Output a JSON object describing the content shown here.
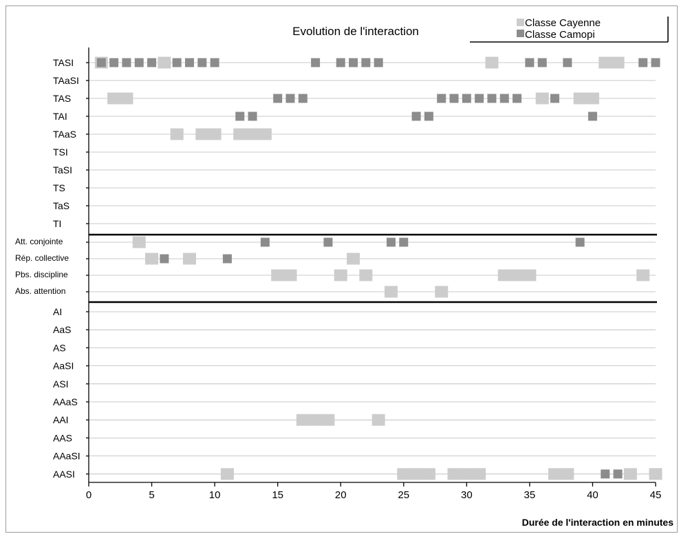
{
  "chart_data": {
    "type": "scatter",
    "title": "Evolution de l'interaction",
    "xlabel": "Durée de l'interaction en minutes",
    "ylabel": "",
    "xlim": [
      0,
      45
    ],
    "x_ticks": [
      0,
      5,
      10,
      15,
      20,
      25,
      30,
      35,
      40,
      45
    ],
    "grid": true,
    "legend_position": "top-right",
    "groups": [
      [
        "TASI",
        "TAaSI",
        "TAS",
        "TAI",
        "TAaS",
        "TSI",
        "TaSI",
        "TS",
        "TaS",
        "TI"
      ],
      [
        "Att. conjointe",
        "Rép. collective",
        "Pbs. discipline",
        "Abs. attention"
      ],
      [
        "AI",
        "AaS",
        "AS",
        "AaSI",
        "ASI",
        "AAaS",
        "AAI",
        "AAS",
        "AAaSI",
        "AASI"
      ]
    ],
    "series": [
      {
        "name": "Classe Cayenne",
        "color": "#cccccc",
        "points": [
          {
            "x": 1,
            "category": "TASI"
          },
          {
            "x": 6,
            "category": "TASI"
          },
          {
            "x": 32,
            "category": "TASI"
          },
          {
            "x": 41,
            "category": "TASI"
          },
          {
            "x": 42,
            "category": "TASI"
          },
          {
            "x": 2,
            "category": "TAS"
          },
          {
            "x": 3,
            "category": "TAS"
          },
          {
            "x": 36,
            "category": "TAS"
          },
          {
            "x": 39,
            "category": "TAS"
          },
          {
            "x": 40,
            "category": "TAS"
          },
          {
            "x": 7,
            "category": "TAaS"
          },
          {
            "x": 9,
            "category": "TAaS"
          },
          {
            "x": 10,
            "category": "TAaS"
          },
          {
            "x": 12,
            "category": "TAaS"
          },
          {
            "x": 13,
            "category": "TAaS"
          },
          {
            "x": 14,
            "category": "TAaS"
          },
          {
            "x": 4,
            "category": "Att. conjointe"
          },
          {
            "x": 5,
            "category": "Rép. collective"
          },
          {
            "x": 8,
            "category": "Rép. collective"
          },
          {
            "x": 21,
            "category": "Rép. collective"
          },
          {
            "x": 15,
            "category": "Pbs. discipline"
          },
          {
            "x": 16,
            "category": "Pbs. discipline"
          },
          {
            "x": 20,
            "category": "Pbs. discipline"
          },
          {
            "x": 22,
            "category": "Pbs. discipline"
          },
          {
            "x": 33,
            "category": "Pbs. discipline"
          },
          {
            "x": 34,
            "category": "Pbs. discipline"
          },
          {
            "x": 35,
            "category": "Pbs. discipline"
          },
          {
            "x": 44,
            "category": "Pbs. discipline"
          },
          {
            "x": 24,
            "category": "Abs. attention"
          },
          {
            "x": 28,
            "category": "Abs. attention"
          },
          {
            "x": 17,
            "category": "AAI"
          },
          {
            "x": 18,
            "category": "AAI"
          },
          {
            "x": 19,
            "category": "AAI"
          },
          {
            "x": 23,
            "category": "AAI"
          },
          {
            "x": 11,
            "category": "AASI"
          },
          {
            "x": 25,
            "category": "AASI"
          },
          {
            "x": 26,
            "category": "AASI"
          },
          {
            "x": 27,
            "category": "AASI"
          },
          {
            "x": 29,
            "category": "AASI"
          },
          {
            "x": 30,
            "category": "AASI"
          },
          {
            "x": 31,
            "category": "AASI"
          },
          {
            "x": 37,
            "category": "AASI"
          },
          {
            "x": 38,
            "category": "AASI"
          },
          {
            "x": 43,
            "category": "AASI"
          },
          {
            "x": 45,
            "category": "AASI"
          }
        ]
      },
      {
        "name": "Classe Camopi",
        "color": "#8c8c8c",
        "points": [
          {
            "x": 1,
            "category": "TASI"
          },
          {
            "x": 2,
            "category": "TASI"
          },
          {
            "x": 3,
            "category": "TASI"
          },
          {
            "x": 4,
            "category": "TASI"
          },
          {
            "x": 5,
            "category": "TASI"
          },
          {
            "x": 7,
            "category": "TASI"
          },
          {
            "x": 8,
            "category": "TASI"
          },
          {
            "x": 9,
            "category": "TASI"
          },
          {
            "x": 10,
            "category": "TASI"
          },
          {
            "x": 18,
            "category": "TASI"
          },
          {
            "x": 20,
            "category": "TASI"
          },
          {
            "x": 21,
            "category": "TASI"
          },
          {
            "x": 22,
            "category": "TASI"
          },
          {
            "x": 23,
            "category": "TASI"
          },
          {
            "x": 35,
            "category": "TASI"
          },
          {
            "x": 36,
            "category": "TASI"
          },
          {
            "x": 38,
            "category": "TASI"
          },
          {
            "x": 44,
            "category": "TASI"
          },
          {
            "x": 45,
            "category": "TASI"
          },
          {
            "x": 15,
            "category": "TAS"
          },
          {
            "x": 16,
            "category": "TAS"
          },
          {
            "x": 17,
            "category": "TAS"
          },
          {
            "x": 28,
            "category": "TAS"
          },
          {
            "x": 29,
            "category": "TAS"
          },
          {
            "x": 30,
            "category": "TAS"
          },
          {
            "x": 31,
            "category": "TAS"
          },
          {
            "x": 32,
            "category": "TAS"
          },
          {
            "x": 33,
            "category": "TAS"
          },
          {
            "x": 34,
            "category": "TAS"
          },
          {
            "x": 37,
            "category": "TAS"
          },
          {
            "x": 12,
            "category": "TAI"
          },
          {
            "x": 13,
            "category": "TAI"
          },
          {
            "x": 26,
            "category": "TAI"
          },
          {
            "x": 27,
            "category": "TAI"
          },
          {
            "x": 40,
            "category": "TAI"
          },
          {
            "x": 14,
            "category": "Att. conjointe"
          },
          {
            "x": 19,
            "category": "Att. conjointe"
          },
          {
            "x": 24,
            "category": "Att. conjointe"
          },
          {
            "x": 25,
            "category": "Att. conjointe"
          },
          {
            "x": 39,
            "category": "Att. conjointe"
          },
          {
            "x": 6,
            "category": "Rép. collective"
          },
          {
            "x": 11,
            "category": "Rép. collective"
          },
          {
            "x": 41,
            "category": "AASI"
          },
          {
            "x": 42,
            "category": "AASI"
          }
        ]
      }
    ]
  }
}
